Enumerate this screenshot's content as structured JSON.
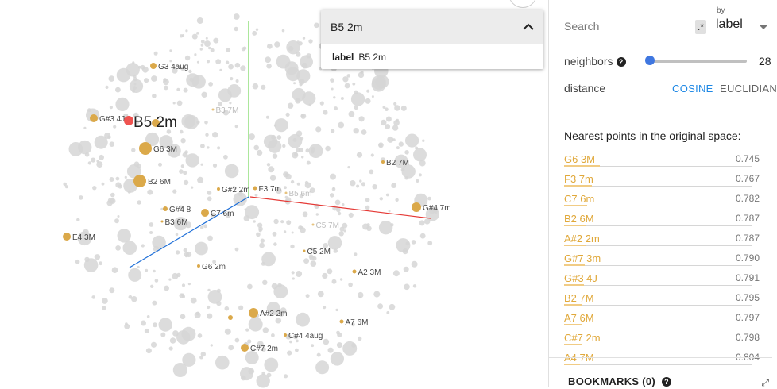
{
  "selection": {
    "title": "B5 2m",
    "field_key": "label",
    "field_value": "B5 2m",
    "collapse_icon": "chevron-up-icon"
  },
  "panel": {
    "search_placeholder": "Search",
    "regex_label": ".*",
    "by_label": "by",
    "by_value": "label",
    "neighbors_label": "neighbors",
    "neighbors_value": "28",
    "distance_label": "distance",
    "distance_options": [
      "COSINE",
      "EUCLIDIAN"
    ],
    "distance_selected": "COSINE",
    "nearest_title": "Nearest points in the original space:",
    "nearest": [
      {
        "label": "G6 3M",
        "value": "0.745"
      },
      {
        "label": "F3 7m",
        "value": "0.767"
      },
      {
        "label": "C7 6m",
        "value": "0.782"
      },
      {
        "label": "B2 6M",
        "value": "0.787"
      },
      {
        "label": "A#2 2m",
        "value": "0.787"
      },
      {
        "label": "G#7 3m",
        "value": "0.790"
      },
      {
        "label": "G#3 4J",
        "value": "0.791"
      },
      {
        "label": "B2 7M",
        "value": "0.795"
      },
      {
        "label": "A7 6M",
        "value": "0.797"
      },
      {
        "label": "C#7 2m",
        "value": "0.798"
      },
      {
        "label": "A4 7M",
        "value": "0.804"
      }
    ],
    "bookmarks_label": "BOOKMARKS (0)",
    "accent": "#1e88e5",
    "highlight": "#e0a83a"
  },
  "projection": {
    "selected_label": "B5 2m",
    "labels": [
      "G3 4aug",
      "B3 7M",
      "G#3 4J",
      "G6 3M",
      "B2 6M",
      "G#2 2m",
      "F3 7m",
      "B5 6m",
      "G#4 7m",
      "G#4 8",
      "C7 6m",
      "B3 6M",
      "B2 7M",
      "C5 7M",
      "E4 3M",
      "C5 2M",
      "G6 2m",
      "A2 3M",
      "A#2 2m",
      "A7 6M",
      "C#4 4aug",
      "C#7 2m"
    ],
    "axis_colors": {
      "x": "#e53935",
      "y": "#76d75a",
      "z": "#1e6fd8"
    },
    "highlight_color": "#dba94a",
    "selected_color": "#ef5350"
  }
}
